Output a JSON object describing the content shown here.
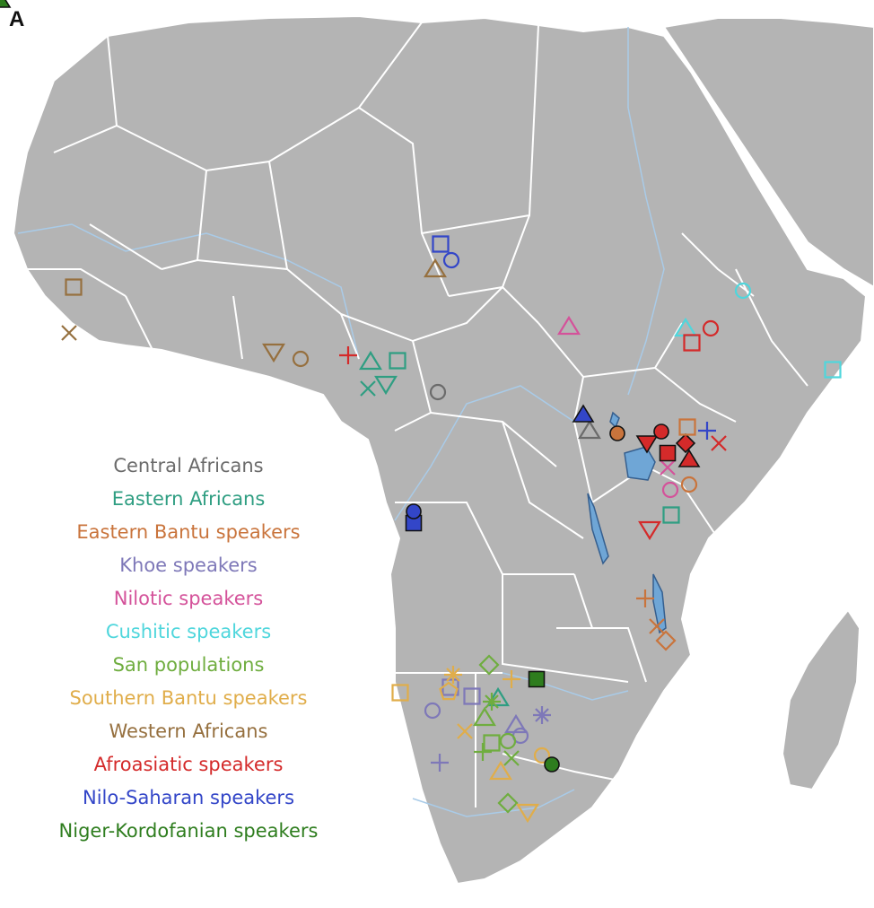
{
  "panel_label": "A",
  "legend": [
    {
      "id": "central",
      "label": "Central Africans",
      "color": "#6b6b6b"
    },
    {
      "id": "eastern",
      "label": "Eastern Africans",
      "color": "#2f9e82"
    },
    {
      "id": "ebantu",
      "label": "Eastern Bantu speakers",
      "color": "#c9743c"
    },
    {
      "id": "khoe",
      "label": "Khoe speakers",
      "color": "#7e78b8"
    },
    {
      "id": "nilotic",
      "label": "Nilotic speakers",
      "color": "#d4529a"
    },
    {
      "id": "cushitic",
      "label": "Cushitic speakers",
      "color": "#4fd6dc"
    },
    {
      "id": "san",
      "label": "San populations",
      "color": "#6fad3f"
    },
    {
      "id": "sbantu",
      "label": "Southern Bantu speakers",
      "color": "#e0ad4a"
    },
    {
      "id": "western",
      "label": "Western Africans",
      "color": "#96703f"
    },
    {
      "id": "afroasiatic",
      "label": "Afroasiatic speakers",
      "color": "#d42a2a"
    },
    {
      "id": "nilosaharan",
      "label": "Nilo-Saharan speakers",
      "color": "#3346c8"
    },
    {
      "id": "nigerkordofanian",
      "label": "Niger-Kordofanian speakers",
      "color": "#2e7d1e"
    }
  ],
  "map_colors": {
    "background": "#ffffff",
    "land": "#b4b4b4",
    "land_shade": "#9e9e9e",
    "border": "#ffffff",
    "water": "#a9cbe8",
    "lake": "#6fa6d6",
    "lake_outline": "#355f8f"
  },
  "samples": [
    {
      "group": "eastern",
      "shape": "triangle",
      "filled": false
    },
    {
      "group": "eastern",
      "shape": "square",
      "filled": false
    },
    {
      "group": "eastern",
      "shape": "x",
      "filled": false
    },
    {
      "group": "eastern",
      "shape": "down-triangle",
      "filled": false
    },
    {
      "group": "eastern",
      "shape": "triangle",
      "filled": false
    },
    {
      "group": "eastern",
      "shape": "square",
      "filled": false
    },
    {
      "group": "central",
      "shape": "circle",
      "filled": false
    },
    {
      "group": "central",
      "shape": "triangle",
      "filled": false
    },
    {
      "group": "nilotic",
      "shape": "triangle",
      "filled": false
    },
    {
      "group": "nilotic",
      "shape": "x",
      "filled": false
    },
    {
      "group": "nilotic",
      "shape": "circle",
      "filled": false
    },
    {
      "group": "cushitic",
      "shape": "circle",
      "filled": false
    },
    {
      "group": "cushitic",
      "shape": "square",
      "filled": false
    },
    {
      "group": "cushitic",
      "shape": "triangle",
      "filled": false
    },
    {
      "group": "afroasiatic",
      "shape": "plus",
      "filled": false
    },
    {
      "group": "afroasiatic",
      "shape": "circle",
      "filled": false
    },
    {
      "group": "afroasiatic",
      "shape": "square",
      "filled": false
    },
    {
      "group": "afroasiatic",
      "shape": "down-triangle",
      "filled": true
    },
    {
      "group": "afroasiatic",
      "shape": "circle",
      "filled": true
    },
    {
      "group": "afroasiatic",
      "shape": "square",
      "filled": true
    },
    {
      "group": "afroasiatic",
      "shape": "diamond",
      "filled": true
    },
    {
      "group": "afroasiatic",
      "shape": "triangle",
      "filled": true
    },
    {
      "group": "afroasiatic",
      "shape": "x",
      "filled": false
    },
    {
      "group": "afroasiatic",
      "shape": "down-triangle",
      "filled": false
    },
    {
      "group": "nilosaharan",
      "shape": "triangle",
      "filled": true
    },
    {
      "group": "nilosaharan",
      "shape": "square",
      "filled": false
    },
    {
      "group": "nilosaharan",
      "shape": "circle",
      "filled": false
    },
    {
      "group": "nilosaharan",
      "shape": "plus",
      "filled": false
    },
    {
      "group": "nilosaharan",
      "shape": "square",
      "filled": true
    },
    {
      "group": "nilosaharan",
      "shape": "circle",
      "filled": true
    },
    {
      "group": "ebantu",
      "shape": "circle",
      "filled": true
    },
    {
      "group": "ebantu",
      "shape": "square",
      "filled": false
    },
    {
      "group": "ebantu",
      "shape": "circle",
      "filled": false
    },
    {
      "group": "ebantu",
      "shape": "plus",
      "filled": false
    },
    {
      "group": "ebantu",
      "shape": "x",
      "filled": false
    },
    {
      "group": "ebantu",
      "shape": "diamond",
      "filled": false
    },
    {
      "group": "western",
      "shape": "square",
      "filled": false
    },
    {
      "group": "western",
      "shape": "x",
      "filled": false
    },
    {
      "group": "western",
      "shape": "triangle",
      "filled": false
    },
    {
      "group": "western",
      "shape": "down-triangle",
      "filled": false
    },
    {
      "group": "western",
      "shape": "circle",
      "filled": false
    },
    {
      "group": "khoe",
      "shape": "circle",
      "filled": false
    },
    {
      "group": "khoe",
      "shape": "square",
      "filled": false
    },
    {
      "group": "khoe",
      "shape": "star",
      "filled": false
    },
    {
      "group": "khoe",
      "shape": "plus",
      "filled": false
    },
    {
      "group": "khoe",
      "shape": "circle",
      "filled": false
    },
    {
      "group": "khoe",
      "shape": "triangle",
      "filled": false
    },
    {
      "group": "khoe",
      "shape": "square",
      "filled": false
    },
    {
      "group": "san",
      "shape": "star",
      "filled": false
    },
    {
      "group": "san",
      "shape": "triangle",
      "filled": false
    },
    {
      "group": "san",
      "shape": "square",
      "filled": false
    },
    {
      "group": "san",
      "shape": "plus",
      "filled": false
    },
    {
      "group": "san",
      "shape": "diamond",
      "filled": false
    },
    {
      "group": "san",
      "shape": "x",
      "filled": false
    },
    {
      "group": "san",
      "shape": "circle",
      "filled": false
    },
    {
      "group": "san",
      "shape": "diamond",
      "filled": false
    },
    {
      "group": "sbantu",
      "shape": "star",
      "filled": false
    },
    {
      "group": "sbantu",
      "shape": "pentagon",
      "filled": false
    },
    {
      "group": "sbantu",
      "shape": "square",
      "filled": false
    },
    {
      "group": "sbantu",
      "shape": "x",
      "filled": false
    },
    {
      "group": "sbantu",
      "shape": "triangle",
      "filled": false
    },
    {
      "group": "sbantu",
      "shape": "down-triangle",
      "filled": false
    },
    {
      "group": "sbantu",
      "shape": "circle",
      "filled": false
    },
    {
      "group": "sbantu",
      "shape": "plus",
      "filled": false
    },
    {
      "group": "nigerkordofanian",
      "shape": "square",
      "filled": true
    },
    {
      "group": "nigerkordofanian",
      "shape": "circle",
      "filled": true
    },
    {
      "group": "nigerkordofanian",
      "shape": "triangle",
      "filled": true
    }
  ]
}
